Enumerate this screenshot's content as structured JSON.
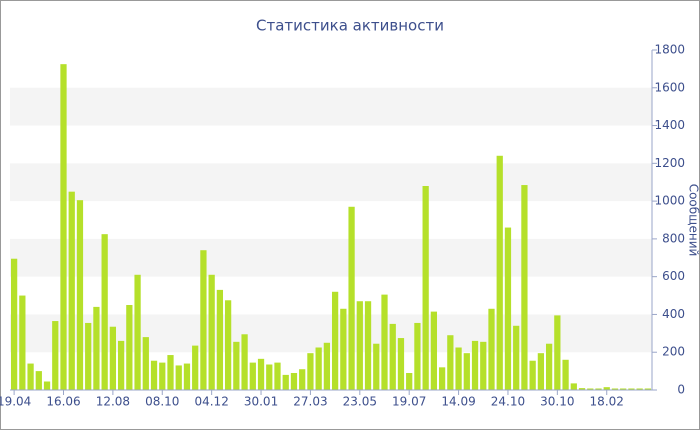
{
  "chart_data": {
    "type": "bar",
    "title": "Статистика активности",
    "y_label": "Сообщений",
    "categories": [
      "19.04",
      null,
      null,
      null,
      null,
      null,
      "16.06",
      null,
      null,
      null,
      null,
      null,
      "12.08",
      null,
      null,
      null,
      null,
      null,
      "08.10",
      null,
      null,
      null,
      null,
      null,
      "04.12",
      null,
      null,
      null,
      null,
      null,
      "30.01",
      null,
      null,
      null,
      null,
      null,
      "27.03",
      null,
      null,
      null,
      null,
      null,
      "23.05",
      null,
      null,
      null,
      null,
      null,
      "19.07",
      null,
      null,
      null,
      null,
      null,
      "14.09",
      null,
      null,
      null,
      null,
      null,
      "24.10",
      null,
      null,
      null,
      null,
      null,
      "30.10",
      null,
      null,
      null,
      null,
      null,
      "18.02",
      null,
      null,
      null,
      null,
      null
    ],
    "values": [
      695,
      500,
      140,
      100,
      45,
      365,
      1725,
      1050,
      1005,
      355,
      440,
      825,
      335,
      260,
      450,
      610,
      280,
      155,
      145,
      185,
      130,
      140,
      235,
      740,
      610,
      530,
      475,
      255,
      295,
      145,
      165,
      135,
      145,
      80,
      90,
      110,
      195,
      225,
      250,
      520,
      430,
      970,
      470,
      470,
      245,
      505,
      350,
      275,
      90,
      355,
      1080,
      415,
      120,
      290,
      225,
      195,
      260,
      255,
      430,
      1240,
      860,
      340,
      1085,
      155,
      195,
      245,
      395,
      160,
      35,
      10,
      8,
      8,
      15,
      8,
      8,
      8,
      8,
      8
    ],
    "color": "#b5e02a",
    "ylim": [
      0,
      1800
    ],
    "yticks": [
      0,
      200,
      400,
      600,
      800,
      1000,
      1200,
      1400,
      1600,
      1800
    ],
    "grid": "bands",
    "y_axis_side": "right"
  }
}
